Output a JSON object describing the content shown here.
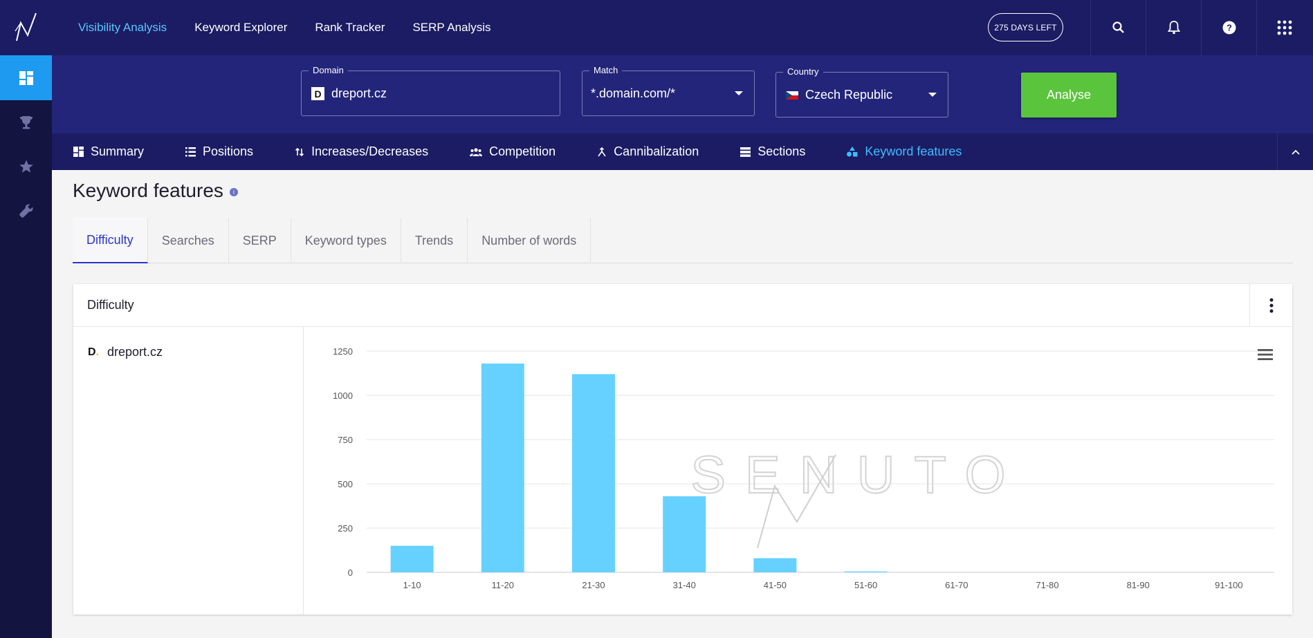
{
  "topnav": {
    "items": [
      {
        "label": "Visibility Analysis",
        "active": true
      },
      {
        "label": "Keyword Explorer",
        "active": false
      },
      {
        "label": "Rank Tracker",
        "active": false
      },
      {
        "label": "SERP Analysis",
        "active": false
      }
    ],
    "days_left": "275 DAYS LEFT",
    "icons": [
      "search-icon",
      "bell-icon",
      "help-icon",
      "apps-grid-icon"
    ]
  },
  "sidebar": {
    "items": [
      {
        "icon": "dashboard-icon",
        "active": true
      },
      {
        "icon": "trophy-icon",
        "active": false
      },
      {
        "icon": "star-icon",
        "active": false
      },
      {
        "icon": "wrench-icon",
        "active": false
      }
    ]
  },
  "filters": {
    "domain": {
      "label": "Domain",
      "value": "dreport.cz"
    },
    "match": {
      "label": "Match",
      "value": "*.domain.com/*"
    },
    "country": {
      "label": "Country",
      "value": "Czech Republic"
    },
    "analyse_label": "Analyse"
  },
  "subnav": {
    "items": [
      {
        "label": "Summary",
        "icon": "dashboard-icon",
        "active": false
      },
      {
        "label": "Positions",
        "icon": "list-icon",
        "active": false
      },
      {
        "label": "Increases/Decreases",
        "icon": "arrows-updown-icon",
        "active": false
      },
      {
        "label": "Competition",
        "icon": "people-icon",
        "active": false
      },
      {
        "label": "Cannibalization",
        "icon": "merge-icon",
        "active": false
      },
      {
        "label": "Sections",
        "icon": "sections-icon",
        "active": false
      },
      {
        "label": "Keyword features",
        "icon": "shapes-icon",
        "active": true
      }
    ]
  },
  "page": {
    "title": "Keyword features",
    "tabs": [
      {
        "label": "Difficulty",
        "active": true
      },
      {
        "label": "Searches",
        "active": false
      },
      {
        "label": "SERP",
        "active": false
      },
      {
        "label": "Keyword types",
        "active": false
      },
      {
        "label": "Trends",
        "active": false
      },
      {
        "label": "Number of words",
        "active": false
      }
    ],
    "card_title": "Difficulty",
    "legend_domain": "dreport.cz"
  },
  "colors": {
    "bar": "#66d1ff",
    "topbar": "#1b1c63",
    "filterbar": "#23257a",
    "sidebar": "#13143f",
    "accent": "#3ebcff",
    "analyse": "#5bc43d"
  },
  "chart_data": {
    "type": "bar",
    "categories": [
      "1-10",
      "11-20",
      "21-30",
      "31-40",
      "41-50",
      "51-60",
      "61-70",
      "71-80",
      "81-90",
      "91-100"
    ],
    "series": [
      {
        "values": [
          150,
          1180,
          1120,
          430,
          80,
          5,
          0,
          0,
          0,
          0
        ]
      }
    ],
    "yticks": [
      0,
      250,
      500,
      750,
      1000,
      1250
    ],
    "ylim": [
      0,
      1250
    ],
    "grid": true,
    "watermark": "SENUTO"
  }
}
